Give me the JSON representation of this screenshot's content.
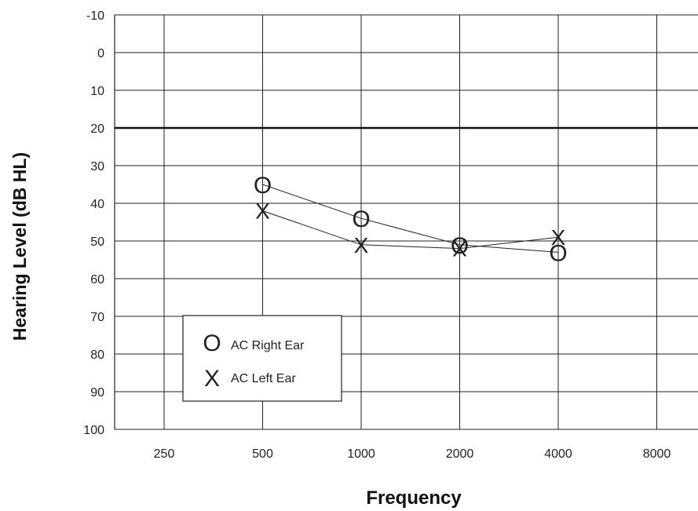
{
  "chart_data": {
    "type": "line",
    "xlabel": "Frequency",
    "ylabel": "Hearing Level (dB HL)",
    "x_categories": [
      "250",
      "500",
      "1000",
      "2000",
      "4000",
      "8000"
    ],
    "y_ticks": [
      -10,
      0,
      10,
      20,
      30,
      40,
      50,
      60,
      70,
      80,
      90,
      100
    ],
    "ylim": [
      -10,
      100
    ],
    "y_inverted": true,
    "grid": true,
    "reference_line": {
      "y": 20
    },
    "legend_position": "bottom-left",
    "series": [
      {
        "name": "AC Right Ear",
        "marker": "O",
        "x": [
          "500",
          "1000",
          "2000",
          "4000"
        ],
        "values": [
          35,
          44,
          51,
          53
        ]
      },
      {
        "name": "AC Left Ear",
        "marker": "X",
        "x": [
          "500",
          "1000",
          "2000",
          "4000"
        ],
        "values": [
          42,
          51,
          52,
          49
        ]
      }
    ]
  }
}
